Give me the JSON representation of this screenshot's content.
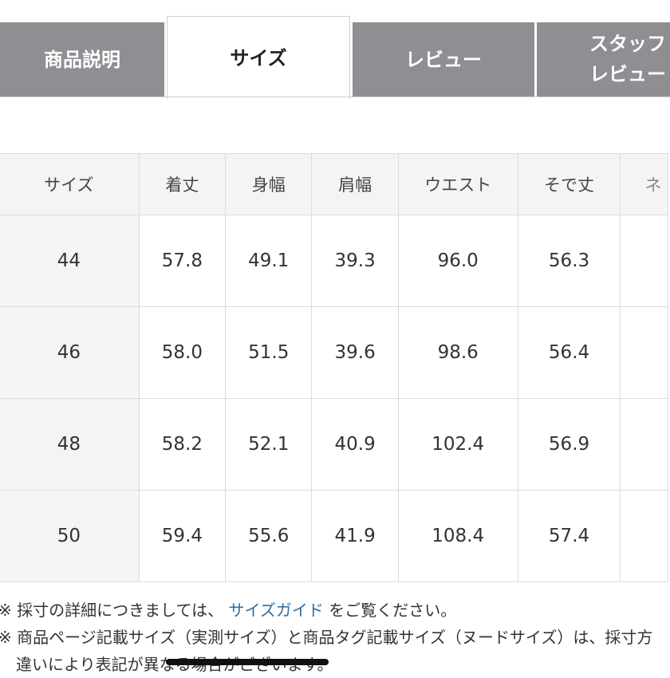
{
  "tabs": [
    {
      "label": "商品説明",
      "active": false
    },
    {
      "label": "サイズ",
      "active": true
    },
    {
      "label": "レビュー",
      "active": false
    },
    {
      "label_line1": "スタッフ",
      "label_line2": "レビュー",
      "active": false
    }
  ],
  "size_table": {
    "headers": [
      "サイズ",
      "着丈",
      "身幅",
      "肩幅",
      "ウエスト",
      "そで丈",
      "ネ"
    ],
    "rows": [
      [
        "44",
        "57.8",
        "49.1",
        "39.3",
        "96.0",
        "56.3",
        ""
      ],
      [
        "46",
        "58.0",
        "51.5",
        "39.6",
        "98.6",
        "56.4",
        ""
      ],
      [
        "48",
        "58.2",
        "52.1",
        "40.9",
        "102.4",
        "56.9",
        ""
      ],
      [
        "50",
        "59.4",
        "55.6",
        "41.9",
        "108.4",
        "57.4",
        ""
      ]
    ]
  },
  "notes": {
    "line1_prefix": "※ 採寸の詳細につきましては、",
    "line1_link": "サイズガイド",
    "line1_suffix": "をご覧ください。",
    "line2": "※ 商品ページ記載サイズ（実測サイズ）と商品タグ記載サイズ（ヌードサイズ）は、採寸方",
    "line3": "違いにより表記が異なる場合がございます。"
  },
  "colors": {
    "tab_inactive": "#8e8e93",
    "link": "#2e6da4",
    "header_bg": "#f4f4f4"
  }
}
